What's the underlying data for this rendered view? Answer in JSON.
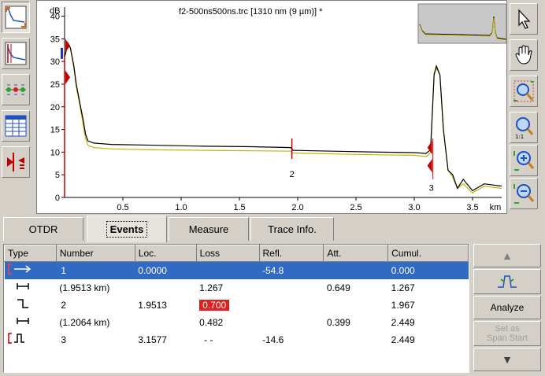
{
  "chart": {
    "title": "f2-500ns500ns.trc [1310 nm (9 µm)] *",
    "y_unit": "dB",
    "x_unit": "km",
    "y_ticks": [
      "40",
      "35",
      "30",
      "25",
      "20",
      "15",
      "10",
      "5",
      "0"
    ],
    "x_ticks": [
      "0.5",
      "1.0",
      "1.5",
      "2.0",
      "2.5",
      "3.0",
      "3.5"
    ],
    "event_markers": [
      "2",
      "3"
    ]
  },
  "chart_data": {
    "type": "line",
    "title": "f2-500ns500ns.trc [1310 nm (9 µm)] *",
    "xlabel": "km",
    "ylabel": "dB",
    "xlim": [
      0,
      3.75
    ],
    "ylim": [
      0,
      42
    ],
    "series": [
      {
        "name": "",
        "color": "#000000",
        "x": [
          0.0,
          0.03,
          0.05,
          0.08,
          0.1,
          0.13,
          0.16,
          0.18,
          0.2,
          0.25,
          0.4,
          0.8,
          1.2,
          1.6,
          1.94,
          1.96,
          2.3,
          2.7,
          3.0,
          3.1,
          3.14,
          3.17,
          3.19,
          3.22,
          3.25,
          3.29,
          3.33,
          3.37,
          3.42,
          3.5,
          3.6,
          3.75
        ],
        "y": [
          31,
          34,
          33,
          29,
          25,
          21,
          17,
          14,
          12.5,
          12.0,
          11.7,
          11.5,
          11.3,
          11.2,
          11.0,
          10.4,
          10.2,
          10.0,
          9.9,
          9.7,
          10.5,
          27,
          29,
          27,
          15,
          6,
          5,
          2,
          4,
          1.5,
          3,
          2.5
        ]
      },
      {
        "name": "",
        "color": "#c8b400",
        "x": [
          0.0,
          0.03,
          0.05,
          0.08,
          0.1,
          0.13,
          0.16,
          0.18,
          0.2,
          0.25,
          0.4,
          0.8,
          1.2,
          1.6,
          1.94,
          1.96,
          2.3,
          2.7,
          3.0,
          3.1,
          3.14,
          3.17,
          3.19,
          3.22,
          3.25,
          3.29,
          3.33,
          3.37,
          3.42,
          3.5,
          3.6,
          3.75
        ],
        "y": [
          31,
          33.5,
          33,
          28.5,
          24.5,
          20.5,
          16,
          13,
          11.5,
          11.0,
          10.7,
          10.5,
          10.4,
          10.3,
          10.2,
          9.8,
          9.6,
          9.4,
          9.3,
          9.0,
          9.8,
          27.5,
          28.5,
          27,
          15,
          6,
          4.5,
          2,
          3,
          1,
          2.5,
          2
        ]
      }
    ],
    "events": [
      {
        "x": 1.95,
        "label": "2"
      },
      {
        "x": 3.16,
        "label": "3"
      }
    ]
  },
  "tabs": [
    {
      "label": "OTDR",
      "active": false
    },
    {
      "label": "Events",
      "active": true
    },
    {
      "label": "Measure",
      "active": false
    },
    {
      "label": "Trace Info.",
      "active": false
    }
  ],
  "table": {
    "headers": [
      "Type",
      "Number",
      "Loc.",
      "Loss",
      "Refl.",
      "Att.",
      "Cumul."
    ],
    "rows": [
      {
        "type": "launch",
        "number": "1",
        "loc": "0.0000",
        "loss": "",
        "refl": "-54.8",
        "att": "",
        "cumul": "0.000",
        "selected": true
      },
      {
        "type": "section",
        "number": "(1.9513 km)",
        "loc": "",
        "loss": "1.267",
        "refl": "",
        "att": "0.649",
        "cumul": "1.267"
      },
      {
        "type": "splice",
        "number": "2",
        "loc": "1.9513",
        "loss": "0.700",
        "refl": "",
        "att": "",
        "cumul": "1.967",
        "loss_flag": true
      },
      {
        "type": "section",
        "number": "(1.2064 km)",
        "loc": "",
        "loss": "0.482",
        "refl": "",
        "att": "0.399",
        "cumul": "2.449"
      },
      {
        "type": "end-reflective",
        "number": "3",
        "loc": "3.1577",
        "loss": "- -",
        "refl": "-14.6",
        "att": "",
        "cumul": "2.449"
      }
    ]
  },
  "side_buttons": {
    "analyze": "Analyze",
    "set_span_line1": "Set as",
    "set_span_line2": "Span Start"
  }
}
